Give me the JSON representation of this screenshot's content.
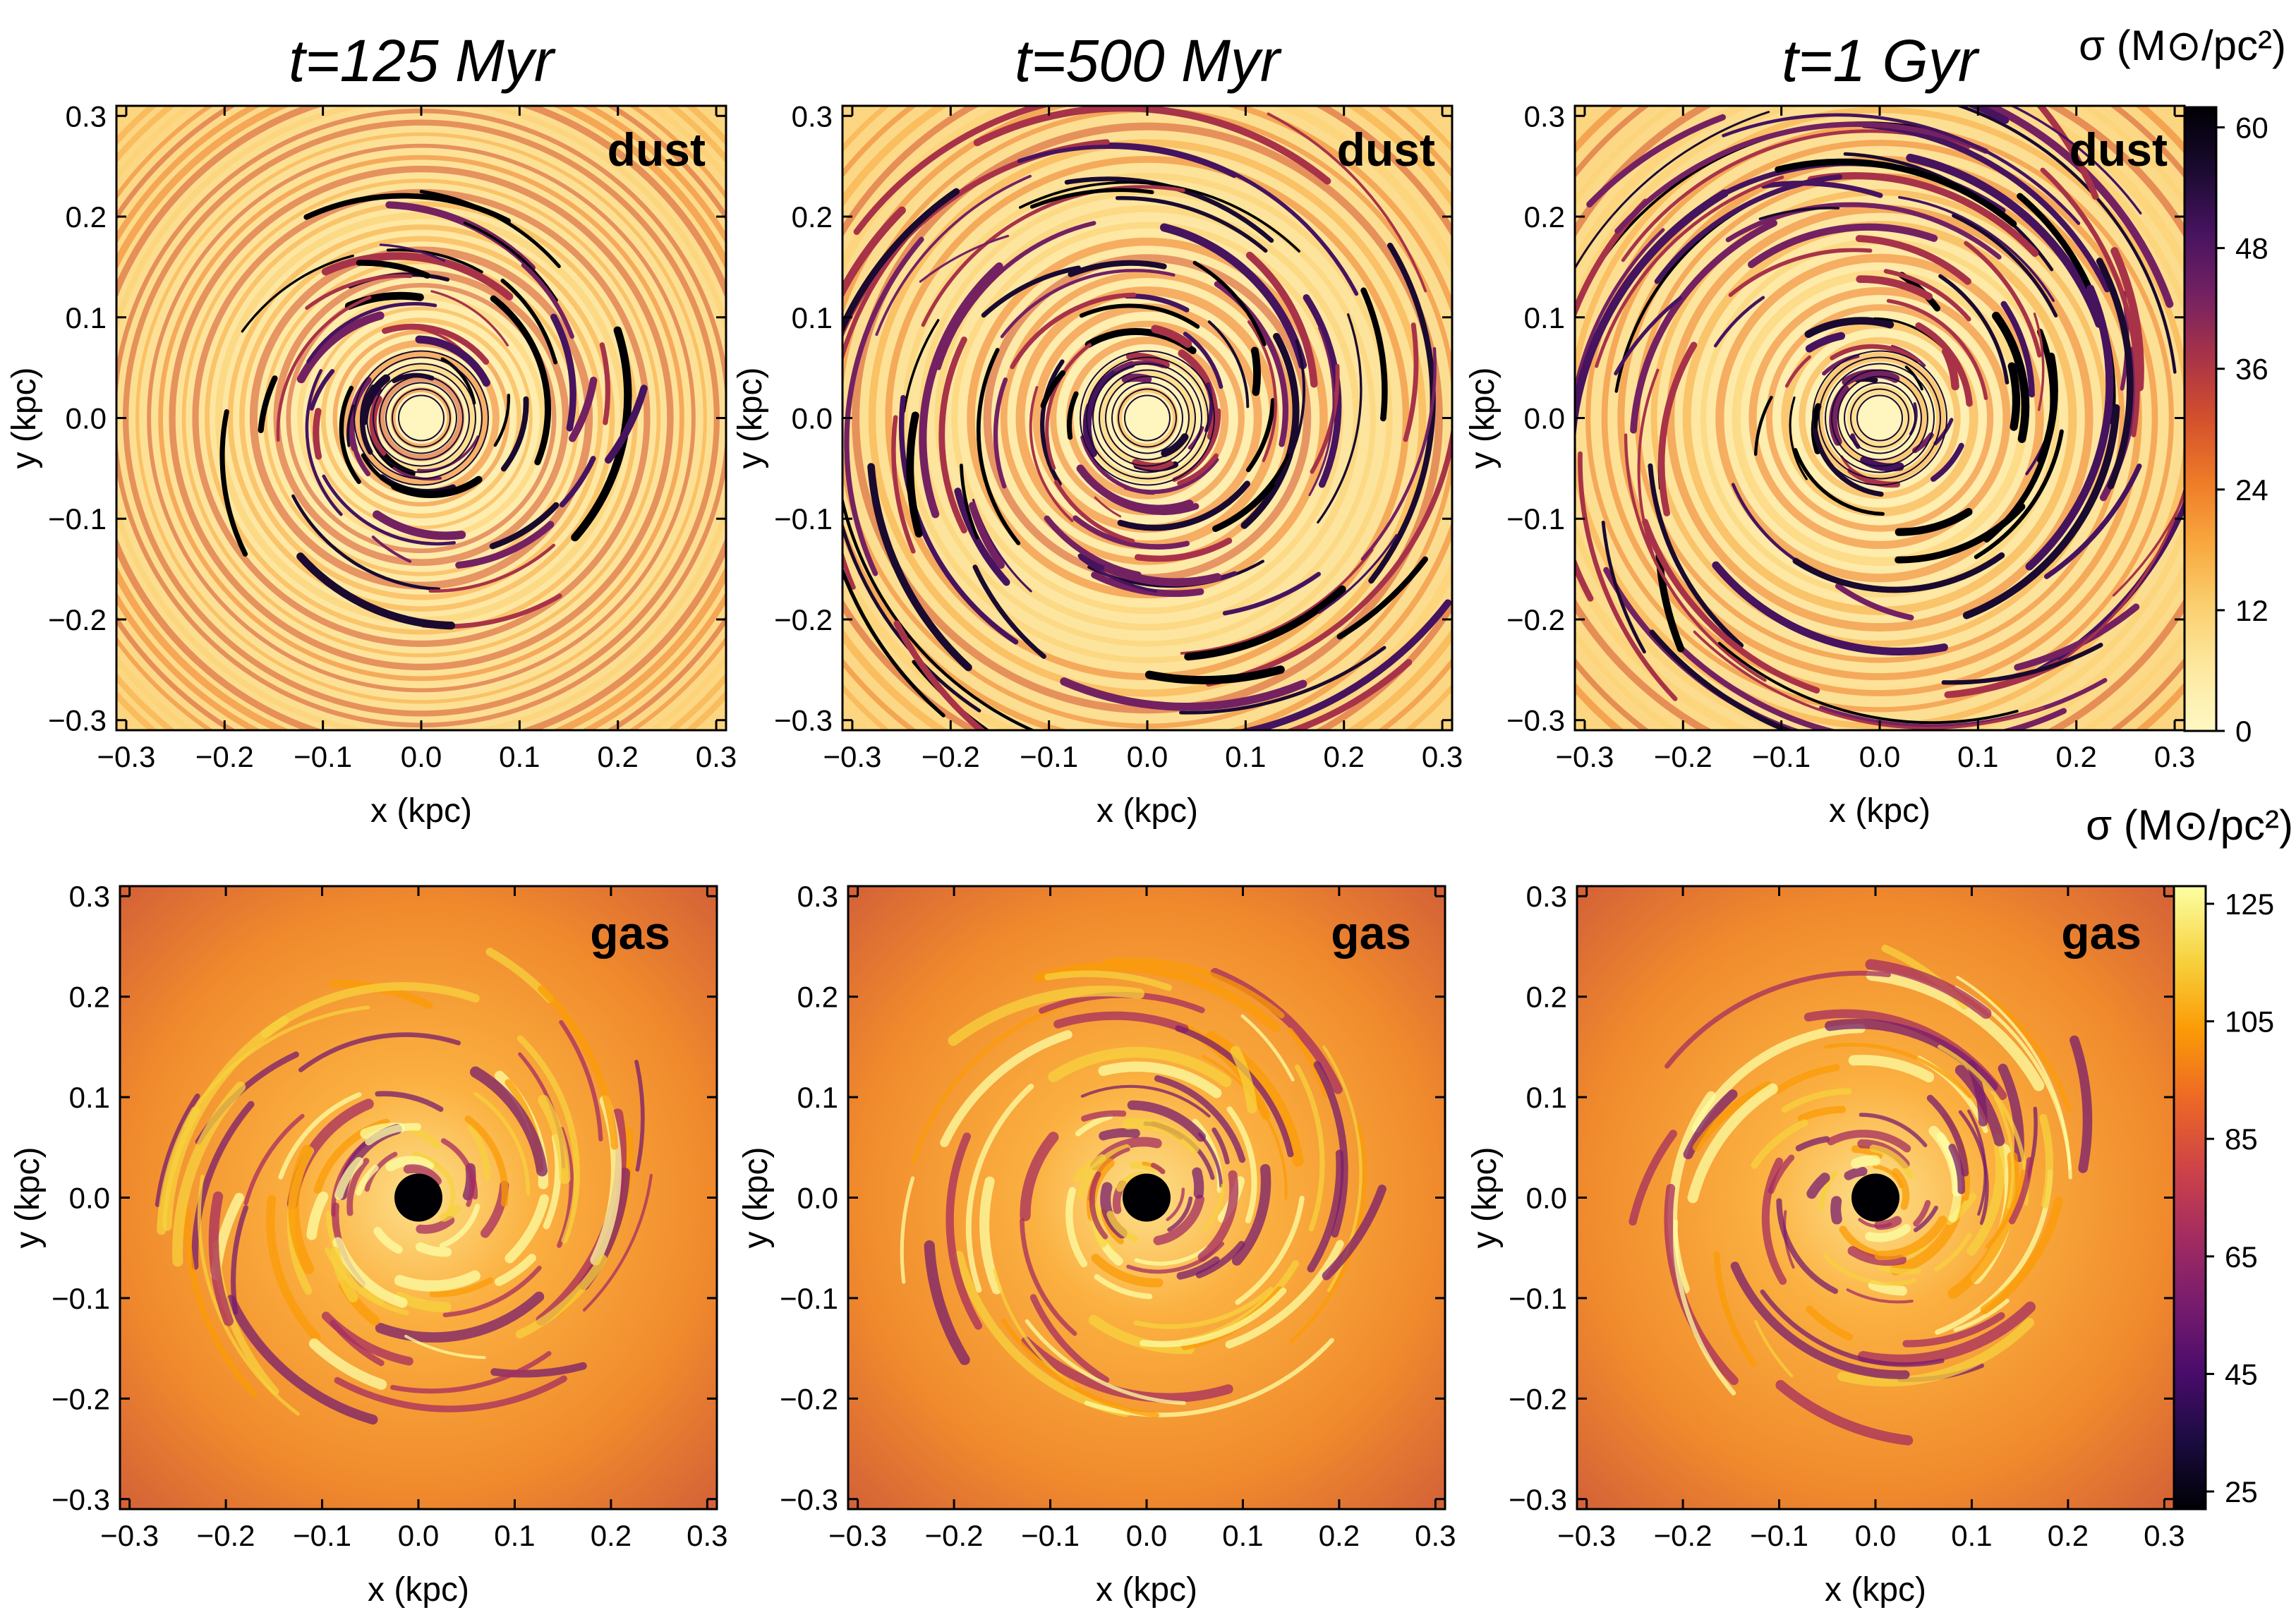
{
  "chart_data": [
    {
      "type": "heatmap",
      "panel": "dust-125",
      "title": "t=125 Myr",
      "label": "dust",
      "xlabel": "x (kpc)",
      "ylabel": "y (kpc)",
      "xlim": [
        -0.31,
        0.31
      ],
      "ylim": [
        -0.31,
        0.31
      ],
      "xticks": [
        "−0.3",
        "−0.2",
        "−0.1",
        "0.0",
        "0.1",
        "0.2",
        "0.3"
      ],
      "yticks": [
        "0.3",
        "0.2",
        "0.1",
        "0.0",
        "−0.1",
        "−0.2",
        "−0.3"
      ]
    },
    {
      "type": "heatmap",
      "panel": "dust-500",
      "title": "t=500 Myr",
      "label": "dust",
      "xlabel": "x (kpc)",
      "ylabel": "y (kpc)",
      "xlim": [
        -0.31,
        0.31
      ],
      "ylim": [
        -0.31,
        0.31
      ],
      "xticks": [
        "−0.3",
        "−0.2",
        "−0.1",
        "0.0",
        "0.1",
        "0.2",
        "0.3"
      ],
      "yticks": [
        "0.3",
        "0.2",
        "0.1",
        "0.0",
        "−0.1",
        "−0.2",
        "−0.3"
      ]
    },
    {
      "type": "heatmap",
      "panel": "dust-1000",
      "title": "t=1 Gyr",
      "label": "dust",
      "xlabel": "x (kpc)",
      "ylabel": "y (kpc)",
      "xlim": [
        -0.31,
        0.31
      ],
      "ylim": [
        -0.31,
        0.31
      ],
      "xticks": [
        "−0.3",
        "−0.2",
        "−0.1",
        "0.0",
        "0.1",
        "0.2",
        "0.3"
      ],
      "yticks": [
        "0.3",
        "0.2",
        "0.1",
        "0.0",
        "−0.1",
        "−0.2",
        "−0.3"
      ]
    },
    {
      "type": "heatmap",
      "panel": "gas-125",
      "title": "",
      "label": "gas",
      "xlabel": "x (kpc)",
      "ylabel": "y (kpc)",
      "xlim": [
        -0.31,
        0.31
      ],
      "ylim": [
        -0.31,
        0.31
      ],
      "xticks": [
        "−0.3",
        "−0.2",
        "−0.1",
        "0.0",
        "0.1",
        "0.2",
        "0.3"
      ],
      "yticks": [
        "0.3",
        "0.2",
        "0.1",
        "0.0",
        "−0.1",
        "−0.2",
        "−0.3"
      ]
    },
    {
      "type": "heatmap",
      "panel": "gas-500",
      "title": "",
      "label": "gas",
      "xlabel": "x (kpc)",
      "ylabel": "y (kpc)",
      "xlim": [
        -0.31,
        0.31
      ],
      "ylim": [
        -0.31,
        0.31
      ],
      "xticks": [
        "−0.3",
        "−0.2",
        "−0.1",
        "0.0",
        "0.1",
        "0.2",
        "0.3"
      ],
      "yticks": [
        "0.3",
        "0.2",
        "0.1",
        "0.0",
        "−0.1",
        "−0.2",
        "−0.3"
      ]
    },
    {
      "type": "heatmap",
      "panel": "gas-1000",
      "title": "",
      "label": "gas",
      "xlabel": "x (kpc)",
      "ylabel": "y (kpc)",
      "xlim": [
        -0.31,
        0.31
      ],
      "ylim": [
        -0.31,
        0.31
      ],
      "xticks": [
        "−0.3",
        "−0.2",
        "−0.1",
        "0.0",
        "0.1",
        "0.2",
        "0.3"
      ],
      "yticks": [
        "0.3",
        "0.2",
        "0.1",
        "0.0",
        "−0.1",
        "−0.2",
        "−0.3"
      ]
    }
  ],
  "colorbars": {
    "dust": {
      "label": "σ (M⊙/pc²)",
      "range": [
        0,
        62
      ],
      "ticks": [
        "60",
        "48",
        "36",
        "24",
        "12",
        "0"
      ]
    },
    "gas": {
      "label": "σ (M⊙/pc²)",
      "range": [
        22,
        128
      ],
      "ticks": [
        "125",
        "105",
        "85",
        "65",
        "45",
        "25"
      ]
    }
  },
  "colors": {
    "dust_cmap": [
      "#fff8c4",
      "#fde9a0",
      "#fbcf70",
      "#f8a83e",
      "#ee7b28",
      "#d4502c",
      "#a83348",
      "#742162",
      "#46135f",
      "#1a0a30",
      "#000004"
    ],
    "gas_cmap": [
      "#000004",
      "#1b0c41",
      "#4a0c6b",
      "#781c6d",
      "#a52c60",
      "#cf4446",
      "#ed6925",
      "#fb9b06",
      "#f7d13d",
      "#fcffa4"
    ]
  }
}
